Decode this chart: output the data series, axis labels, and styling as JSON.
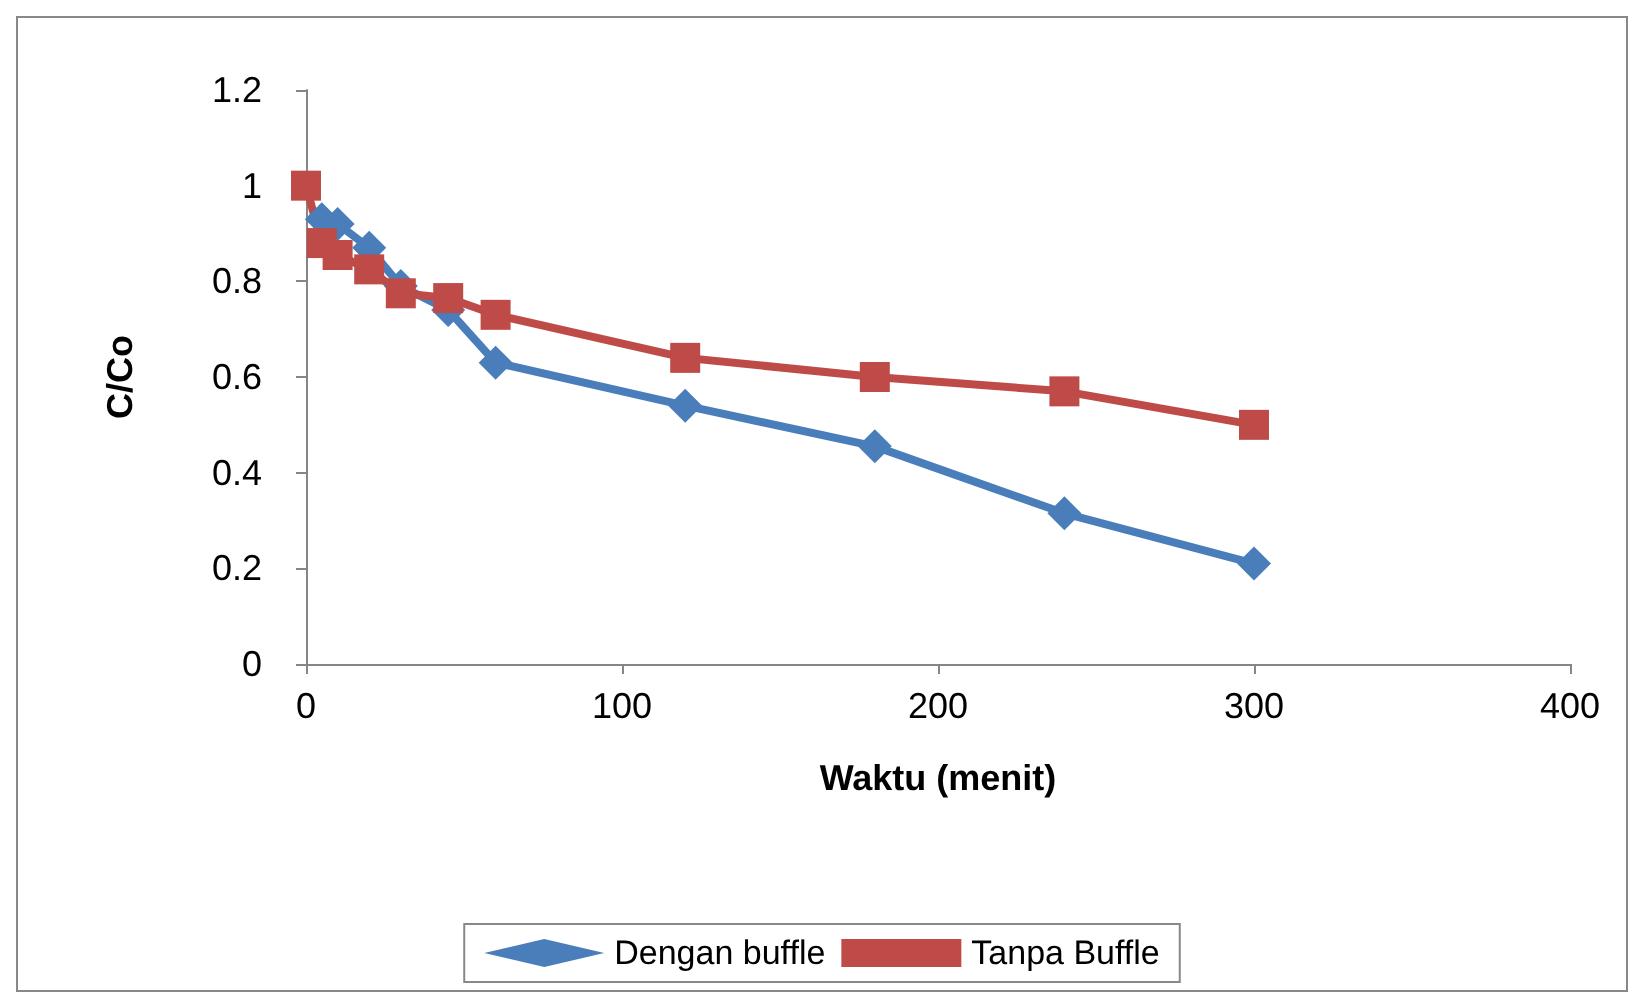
{
  "chart_data": {
    "type": "line",
    "xlabel": "Waktu (menit)",
    "ylabel": "C/Co",
    "x": [
      0,
      5,
      10,
      20,
      30,
      45,
      60,
      120,
      180,
      240,
      300
    ],
    "xlim": [
      0,
      400
    ],
    "xticks": [
      0,
      100,
      200,
      300,
      400
    ],
    "ylim": [
      0,
      1.2
    ],
    "yticks": [
      0,
      0.2,
      0.4,
      0.6,
      0.8,
      1,
      1.2
    ],
    "grid": false,
    "legend": "bottom",
    "series": [
      {
        "name": "Dengan buffle",
        "color": "#4a7ebb",
        "marker": "diamond",
        "values": [
          null,
          0.93,
          0.92,
          0.87,
          0.79,
          0.74,
          0.63,
          0.54,
          0.455,
          0.315,
          0.21
        ]
      },
      {
        "name": "Tanpa Buffle",
        "color": "#be4b48",
        "marker": "square",
        "values": [
          1,
          0.88,
          0.855,
          0.825,
          0.775,
          0.765,
          0.73,
          0.64,
          0.6,
          0.57,
          0.5
        ]
      }
    ]
  }
}
